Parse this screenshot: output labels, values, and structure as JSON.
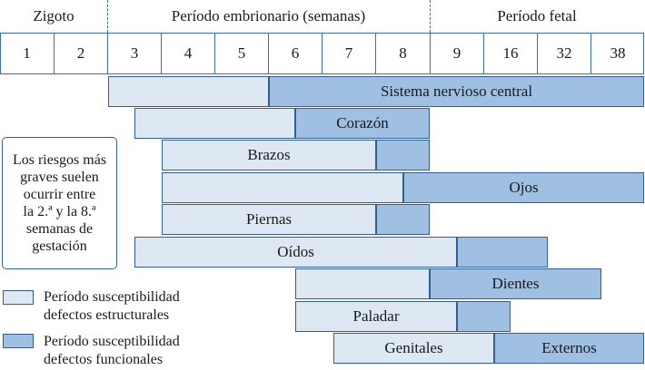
{
  "periods": {
    "zygote": "Zigoto",
    "embryonic": "Período embrionario (semanas)",
    "fetal": "Período fetal"
  },
  "weeks": [
    "1",
    "2",
    "3",
    "4",
    "5",
    "6",
    "7",
    "8",
    "9",
    "16",
    "32",
    "38"
  ],
  "bars": {
    "cns": "Sistema nervioso central",
    "heart": "Corazón",
    "arms": "Brazos",
    "eyes": "Ojos",
    "legs": "Piernas",
    "ears": "Oídos",
    "teeth": "Dientes",
    "palate": "Paladar",
    "genitals": "Genitales",
    "external": "Externos"
  },
  "note": {
    "lines": [
      "Los riesgos más",
      "graves suelen",
      "ocurrir entre",
      "la 2.ª y la 8.ª",
      "semanas de",
      "gestación"
    ]
  },
  "legend": {
    "structural": [
      "Período susceptibilidad",
      "defectos estructurales"
    ],
    "functional": [
      "Período susceptibilidad",
      "defectos funcionales"
    ]
  },
  "colors": {
    "structural": "#dde8f3",
    "functional": "#9fc0e3",
    "border": "#2f5f96"
  }
}
